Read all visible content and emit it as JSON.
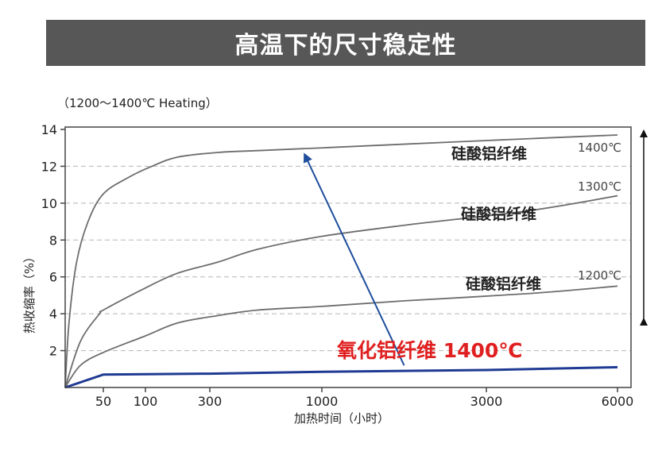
{
  "header": {
    "title": "高温下的尺寸稳定性"
  },
  "colors": {
    "banner": "#575757",
    "curve": "#6d6d6d",
    "alumina": "#1f3a93",
    "arrow": "#1f4e9c",
    "highlight_text": "#e02020",
    "grid": "#b5b5b5"
  },
  "chart_data": {
    "type": "line",
    "title": "高温下的尺寸稳定性",
    "subtitle": "（1200～1400℃ Heating）",
    "xlabel": "加热时间（小时）",
    "ylabel": "热收缩率（%）",
    "x_scale": "nonlinear",
    "x_ticks": [
      50,
      100,
      300,
      1000,
      3000,
      6000
    ],
    "x_tick_labels": [
      "50",
      "100",
      "300",
      "1000",
      "3000",
      "6000"
    ],
    "y_ticks": [
      2,
      4,
      6,
      8,
      10,
      12,
      14
    ],
    "y_tick_labels": [
      "2",
      "4",
      "6",
      "8",
      "10",
      "12",
      "14"
    ],
    "ylim": [
      0,
      14
    ],
    "grid": "horizontal-dashed",
    "series": [
      {
        "name": "硅酸铝纤维",
        "temperature": "1400℃",
        "points": [
          [
            0,
            0
          ],
          [
            5,
            3.5
          ],
          [
            15,
            6.8
          ],
          [
            30,
            9.0
          ],
          [
            50,
            10.5
          ],
          [
            80,
            11.4
          ],
          [
            120,
            12.0
          ],
          [
            200,
            12.5
          ],
          [
            350,
            12.75
          ],
          [
            600,
            12.85
          ],
          [
            1000,
            13.0
          ],
          [
            2000,
            13.2
          ],
          [
            4000,
            13.5
          ],
          [
            6000,
            13.7
          ]
        ]
      },
      {
        "name": "硅酸铝纤维",
        "temperature": "1300℃",
        "points": [
          [
            0,
            0
          ],
          [
            20,
            2.5
          ],
          [
            45,
            4.0
          ],
          [
            50,
            4.2
          ],
          [
            100,
            5.4
          ],
          [
            200,
            6.2
          ],
          [
            350,
            6.8
          ],
          [
            600,
            7.5
          ],
          [
            1000,
            8.2
          ],
          [
            2000,
            8.8
          ],
          [
            4000,
            9.6
          ],
          [
            6000,
            10.4
          ]
        ]
      },
      {
        "name": "硅酸铝纤维",
        "temperature": "1200℃",
        "points": [
          [
            0,
            0
          ],
          [
            20,
            1.2
          ],
          [
            50,
            1.9
          ],
          [
            100,
            2.8
          ],
          [
            200,
            3.5
          ],
          [
            350,
            3.9
          ],
          [
            600,
            4.2
          ],
          [
            1000,
            4.4
          ],
          [
            2000,
            4.7
          ],
          [
            4000,
            5.1
          ],
          [
            6000,
            5.5
          ]
        ]
      },
      {
        "name": "氧化铝纤维 1400℃",
        "temperature": "1400℃",
        "points": [
          [
            0,
            0
          ],
          [
            50,
            0.7
          ],
          [
            300,
            0.75
          ],
          [
            1000,
            0.85
          ],
          [
            3000,
            0.95
          ],
          [
            6000,
            1.1
          ]
        ]
      }
    ],
    "annotations": [
      {
        "text": "氧化铝纤维 1400℃",
        "position": "bottom-center",
        "color": "#e02020"
      },
      {
        "text": "arrow",
        "from": [
          2000,
          1.2
        ],
        "to": [
          900,
          12.5
        ]
      }
    ]
  }
}
